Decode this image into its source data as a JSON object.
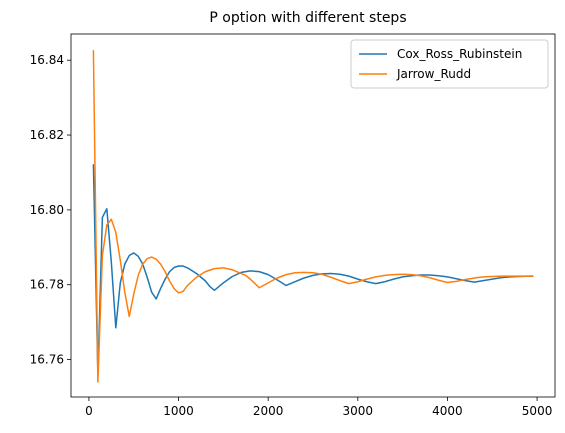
{
  "chart_data": {
    "type": "line",
    "title": "P option with different steps",
    "xlabel": "",
    "ylabel": "",
    "xlim": [
      -200,
      5200
    ],
    "ylim": [
      16.75,
      16.847
    ],
    "xticks": [
      0,
      1000,
      2000,
      3000,
      4000,
      5000
    ],
    "yticks": [
      16.76,
      16.78,
      16.8,
      16.82,
      16.84
    ],
    "grid": false,
    "legend_position": "top-right",
    "series": [
      {
        "name": "Cox_Ross_Rubinstein",
        "color": "#1f77b4",
        "x": [
          50,
          100,
          150,
          200,
          250,
          300,
          350,
          400,
          450,
          500,
          550,
          600,
          650,
          700,
          750,
          800,
          850,
          900,
          950,
          1000,
          1050,
          1100,
          1200,
          1300,
          1350,
          1400,
          1500,
          1600,
          1700,
          1800,
          1900,
          2000,
          2100,
          2200,
          2300,
          2400,
          2500,
          2600,
          2700,
          2800,
          2900,
          3000,
          3100,
          3200,
          3300,
          3400,
          3500,
          3600,
          3700,
          3800,
          3900,
          4000,
          4100,
          4200,
          4300,
          4400,
          4500,
          4600,
          4700,
          4800,
          4900,
          4950
        ],
        "y": [
          16.812,
          16.756,
          16.798,
          16.8003,
          16.786,
          16.7685,
          16.7805,
          16.7855,
          16.7878,
          16.7885,
          16.7876,
          16.7855,
          16.782,
          16.778,
          16.7762,
          16.779,
          16.7815,
          16.7835,
          16.7846,
          16.785,
          16.785,
          16.7845,
          16.783,
          16.781,
          16.7795,
          16.7785,
          16.7805,
          16.7822,
          16.7833,
          16.7837,
          16.7835,
          16.7827,
          16.7813,
          16.7798,
          16.7808,
          16.7818,
          16.7825,
          16.7829,
          16.783,
          16.7828,
          16.7823,
          16.7815,
          16.7808,
          16.7803,
          16.7808,
          16.7815,
          16.7821,
          16.7824,
          16.7826,
          16.7826,
          16.7824,
          16.7821,
          16.7816,
          16.7811,
          16.7807,
          16.7811,
          16.7815,
          16.7819,
          16.7821,
          16.7822,
          16.7823,
          16.7823
        ]
      },
      {
        "name": "Jarrow_Rudd",
        "color": "#ff7f0e",
        "x": [
          50,
          100,
          150,
          200,
          250,
          300,
          350,
          400,
          450,
          500,
          550,
          600,
          650,
          700,
          750,
          800,
          850,
          900,
          950,
          1000,
          1050,
          1100,
          1200,
          1300,
          1400,
          1500,
          1600,
          1700,
          1750,
          1800,
          1900,
          2000,
          2100,
          2200,
          2300,
          2400,
          2500,
          2600,
          2700,
          2800,
          2900,
          3000,
          3100,
          3200,
          3300,
          3400,
          3500,
          3600,
          3700,
          3800,
          3900,
          4000,
          4100,
          4200,
          4300,
          4400,
          4500,
          4600,
          4700,
          4800,
          4900,
          4950
        ],
        "y": [
          16.8425,
          16.754,
          16.7878,
          16.796,
          16.7975,
          16.794,
          16.7865,
          16.778,
          16.7715,
          16.7775,
          16.7825,
          16.7855,
          16.787,
          16.7874,
          16.7868,
          16.7855,
          16.7835,
          16.781,
          16.779,
          16.7778,
          16.7782,
          16.7798,
          16.782,
          16.7835,
          16.7843,
          16.7845,
          16.784,
          16.783,
          16.7825,
          16.7815,
          16.7792,
          16.7805,
          16.7818,
          16.7827,
          16.7832,
          16.7833,
          16.7832,
          16.7828,
          16.782,
          16.7811,
          16.7803,
          16.7808,
          16.7815,
          16.7821,
          16.7825,
          16.7827,
          16.7828,
          16.7827,
          16.7824,
          16.7819,
          16.7812,
          16.7806,
          16.7809,
          16.7814,
          16.7818,
          16.7821,
          16.7822,
          16.7823,
          16.7823,
          16.7823,
          16.7823,
          16.7823
        ]
      }
    ]
  }
}
